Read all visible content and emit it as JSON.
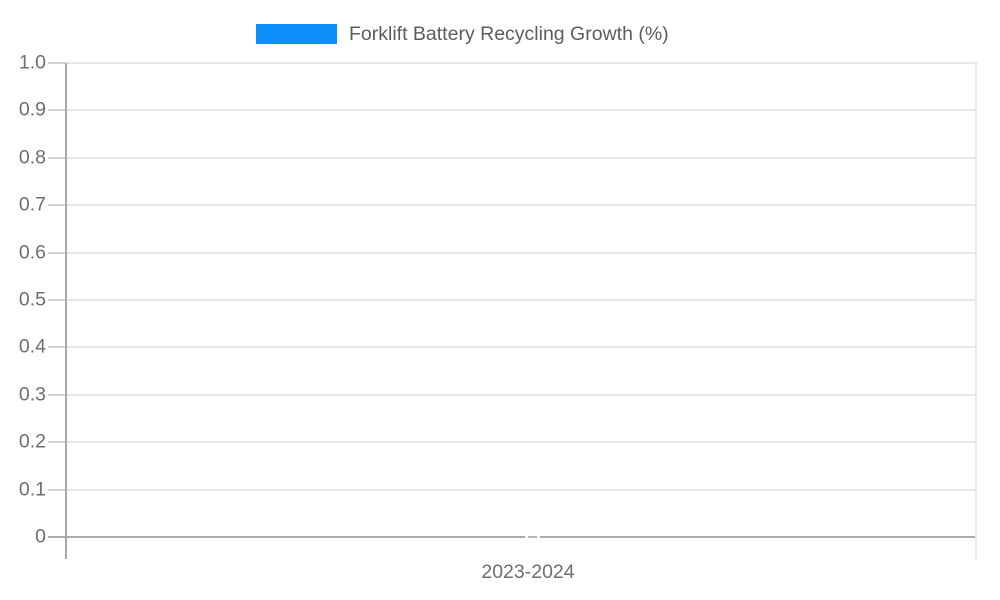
{
  "legend": {
    "series_label": "Forklift Battery Recycling Growth (%)"
  },
  "chart_data": {
    "type": "bar",
    "title": "Forklift Battery Recycling Growth (%)",
    "categories": [
      "2023-2024"
    ],
    "series": [
      {
        "name": "Forklift Battery Recycling Growth (%)",
        "values": [
          0
        ],
        "color": "#0d8ff9"
      }
    ],
    "xlabel": "",
    "ylabel": "",
    "ylim": [
      0,
      1.0
    ],
    "yticks": [
      "1.0",
      "0.9",
      "0.8",
      "0.7",
      "0.6",
      "0.5",
      "0.4",
      "0.3",
      "0.2",
      "0.1",
      "0"
    ],
    "grid": true,
    "legend_position": "top-center",
    "colors": {
      "series": "#0d8ff9",
      "gridline": "#e6e6e6",
      "tick": "#d2d2d2",
      "axis_line": "#a9a9a9",
      "baseline": "#ababab",
      "zero_marker": "#b8b8b8",
      "right_border": "#e8e8e8",
      "axis_label_text": "#6e6e6e",
      "legend_text": "#5d5d5d",
      "background": "#ffffff"
    }
  }
}
